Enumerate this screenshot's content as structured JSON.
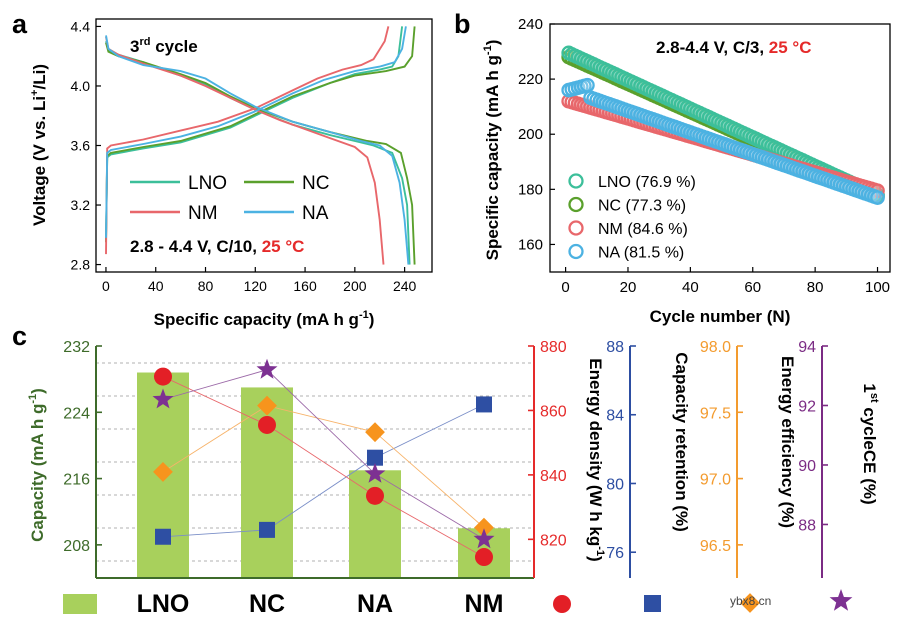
{
  "panels": {
    "a": "a",
    "b": "b",
    "c": "c"
  },
  "colors": {
    "LNO": "#3cbf9a",
    "NC": "#5aa02c",
    "NM": "#e8676b",
    "NA": "#4cb2e2",
    "bar": "#a8d05c",
    "axis_green": "#3e6b2a",
    "axis_red": "#e52a2a",
    "axis_blue": "#2d4ea2",
    "axis_orange": "#f39b2e",
    "axis_purple": "#7b2b84",
    "marker_red": "#e31f26",
    "marker_blue": "#2e4fa3",
    "marker_orange": "#f7941d",
    "marker_purple": "#7d3192"
  },
  "chart_data": [
    {
      "id": "a",
      "type": "line",
      "title_parts": [
        "3",
        "rd",
        " cycle"
      ],
      "xlabel_parts": [
        "Specific capacity (mA h g",
        "-1",
        ")"
      ],
      "ylabel_parts": [
        "Voltage (V vs. Li",
        "+",
        "/Li)"
      ],
      "xlim": [
        -8,
        262
      ],
      "ylim": [
        2.75,
        4.45
      ],
      "xticks": [
        0,
        40,
        80,
        120,
        160,
        200,
        240
      ],
      "yticks": [
        2.8,
        3.2,
        3.6,
        4.0,
        4.4
      ],
      "ytick_labels": [
        "2.8",
        "3.2",
        "3.6",
        "4.0",
        "4.4"
      ],
      "condition_parts": [
        "2.8 - 4.4 V, C/10, ",
        "25 °C"
      ],
      "legend": [
        "LNO",
        "NC",
        "NM",
        "NA"
      ],
      "series": [
        {
          "name": "LNO",
          "charge": [
            [
              0,
              2.95
            ],
            [
              1,
              3.52
            ],
            [
              4,
              3.54
            ],
            [
              30,
              3.58
            ],
            [
              60,
              3.62
            ],
            [
              100,
              3.72
            ],
            [
              120,
              3.8
            ],
            [
              150,
              3.92
            ],
            [
              180,
              4.02
            ],
            [
              200,
              4.08
            ],
            [
              220,
              4.11
            ],
            [
              230,
              4.13
            ],
            [
              235,
              4.2
            ],
            [
              238,
              4.4
            ]
          ],
          "discharge": [
            [
              0,
              4.3
            ],
            [
              2,
              4.24
            ],
            [
              10,
              4.21
            ],
            [
              30,
              4.16
            ],
            [
              60,
              4.07
            ],
            [
              80,
              4.01
            ],
            [
              100,
              3.92
            ],
            [
              120,
              3.84
            ],
            [
              150,
              3.74
            ],
            [
              180,
              3.67
            ],
            [
              200,
              3.63
            ],
            [
              215,
              3.6
            ],
            [
              230,
              3.55
            ],
            [
              238,
              3.38
            ],
            [
              242,
              3.2
            ],
            [
              244,
              2.8
            ]
          ]
        },
        {
          "name": "NC",
          "charge": [
            [
              0,
              2.95
            ],
            [
              1,
              3.53
            ],
            [
              4,
              3.55
            ],
            [
              30,
              3.59
            ],
            [
              60,
              3.63
            ],
            [
              100,
              3.73
            ],
            [
              120,
              3.81
            ],
            [
              150,
              3.93
            ],
            [
              180,
              4.02
            ],
            [
              200,
              4.07
            ],
            [
              225,
              4.1
            ],
            [
              240,
              4.13
            ],
            [
              246,
              4.2
            ],
            [
              248,
              4.4
            ]
          ],
          "discharge": [
            [
              0,
              4.29
            ],
            [
              2,
              4.23
            ],
            [
              10,
              4.2
            ],
            [
              30,
              4.16
            ],
            [
              60,
              4.08
            ],
            [
              80,
              4.02
            ],
            [
              100,
              3.93
            ],
            [
              120,
              3.85
            ],
            [
              150,
              3.76
            ],
            [
              180,
              3.69
            ],
            [
              210,
              3.63
            ],
            [
              225,
              3.61
            ],
            [
              237,
              3.55
            ],
            [
              242,
              3.38
            ],
            [
              246,
              3.2
            ],
            [
              248,
              2.8
            ]
          ]
        },
        {
          "name": "NM",
          "charge": [
            [
              0,
              2.87
            ],
            [
              1,
              3.58
            ],
            [
              4,
              3.6
            ],
            [
              30,
              3.64
            ],
            [
              60,
              3.7
            ],
            [
              90,
              3.76
            ],
            [
              120,
              3.85
            ],
            [
              150,
              3.97
            ],
            [
              170,
              4.05
            ],
            [
              190,
              4.11
            ],
            [
              205,
              4.14
            ],
            [
              215,
              4.18
            ],
            [
              224,
              4.3
            ],
            [
              227,
              4.4
            ]
          ],
          "discharge": [
            [
              0,
              4.33
            ],
            [
              2,
              4.25
            ],
            [
              10,
              4.21
            ],
            [
              30,
              4.15
            ],
            [
              60,
              4.07
            ],
            [
              80,
              4.0
            ],
            [
              100,
              3.92
            ],
            [
              120,
              3.84
            ],
            [
              140,
              3.77
            ],
            [
              160,
              3.71
            ],
            [
              180,
              3.65
            ],
            [
              200,
              3.59
            ],
            [
              210,
              3.52
            ],
            [
              216,
              3.35
            ],
            [
              220,
              3.1
            ],
            [
              223,
              2.8
            ]
          ]
        },
        {
          "name": "NA",
          "charge": [
            [
              0,
              2.98
            ],
            [
              1,
              3.55
            ],
            [
              4,
              3.57
            ],
            [
              30,
              3.61
            ],
            [
              60,
              3.66
            ],
            [
              90,
              3.73
            ],
            [
              120,
              3.83
            ],
            [
              150,
              3.95
            ],
            [
              175,
              4.04
            ],
            [
              200,
              4.1
            ],
            [
              220,
              4.13
            ],
            [
              232,
              4.16
            ],
            [
              238,
              4.25
            ],
            [
              241,
              4.4
            ]
          ],
          "discharge": [
            [
              0,
              4.34
            ],
            [
              2,
              4.25
            ],
            [
              10,
              4.2
            ],
            [
              30,
              4.14
            ],
            [
              60,
              4.1
            ],
            [
              80,
              4.05
            ],
            [
              100,
              3.95
            ],
            [
              120,
              3.86
            ],
            [
              150,
              3.76
            ],
            [
              180,
              3.69
            ],
            [
              205,
              3.63
            ],
            [
              220,
              3.6
            ],
            [
              230,
              3.53
            ],
            [
              236,
              3.35
            ],
            [
              240,
              3.1
            ],
            [
              243,
              2.8
            ]
          ]
        }
      ]
    },
    {
      "id": "b",
      "type": "scatter",
      "xlabel": "Cycle number (N)",
      "ylabel_parts": [
        "Specific capacity (mA h g",
        "-1",
        ")"
      ],
      "xlim": [
        -5,
        104
      ],
      "ylim": [
        150,
        240
      ],
      "xticks": [
        0,
        20,
        40,
        60,
        80,
        100
      ],
      "yticks": [
        160,
        180,
        200,
        220,
        240
      ],
      "condition_parts": [
        "2.8-4.4 V, C/3, ",
        "25 °C"
      ],
      "x": [
        1,
        100
      ],
      "series": [
        {
          "name": "LNO",
          "label": "LNO (76.9 %)",
          "start": 229.5,
          "end": 178.0
        },
        {
          "name": "NC",
          "label": "NC (77.3 %)",
          "start": 228.0,
          "end": 177.5
        },
        {
          "name": "NM",
          "label": "NM (84.6 %)",
          "start": 212.0,
          "end": 179.5
        },
        {
          "name": "NA",
          "label": "NA (81.5 %)",
          "start": 216.0,
          "end": 177.0
        }
      ]
    },
    {
      "id": "c",
      "type": "bar",
      "categories": [
        "LNO",
        "NC",
        "NA",
        "NM"
      ],
      "capacity": [
        228.8,
        227.0,
        217.0,
        210.0
      ],
      "energy_density": [
        870.5,
        855.5,
        833.5,
        814.5
      ],
      "capacity_retention": [
        76.9,
        77.3,
        81.5,
        84.6
      ],
      "energy_efficiency": [
        97.05,
        97.55,
        97.35,
        96.63
      ],
      "first_cycle_ce": [
        92.2,
        93.2,
        89.7,
        87.5
      ],
      "axes": [
        {
          "name": "capacity",
          "label_parts": [
            "Capacity (mA h g",
            "-1",
            ")"
          ],
          "lim": [
            204,
            232
          ],
          "ticks": [
            208,
            216,
            224,
            232
          ]
        },
        {
          "name": "energy_density",
          "label_parts": [
            "Energy density (W h kg",
            "-1",
            ")"
          ],
          "lim": [
            808,
            880
          ],
          "ticks": [
            820,
            840,
            860,
            880
          ]
        },
        {
          "name": "capacity_retention",
          "label": "Capacity retention (%)",
          "lim": [
            74.5,
            88
          ],
          "ticks": [
            76,
            80,
            84,
            88
          ]
        },
        {
          "name": "energy_efficiency",
          "label": "Energy efficiency (%)",
          "lim": [
            96.25,
            98.0
          ],
          "ticks": [
            96.5,
            97.0,
            97.5,
            98.0
          ],
          "tick_labels": [
            "96.5",
            "97.0",
            "97.5",
            "98.0"
          ]
        },
        {
          "name": "first_cycle_ce",
          "label_parts": [
            "1",
            "st",
            " cycleCE (%)"
          ],
          "lim": [
            86.2,
            94
          ],
          "ticks": [
            88,
            90,
            92,
            94
          ]
        }
      ],
      "legend": [
        "bar",
        "circle",
        "square",
        "diamond",
        "star"
      ]
    }
  ],
  "watermark": "ybx8.cn"
}
